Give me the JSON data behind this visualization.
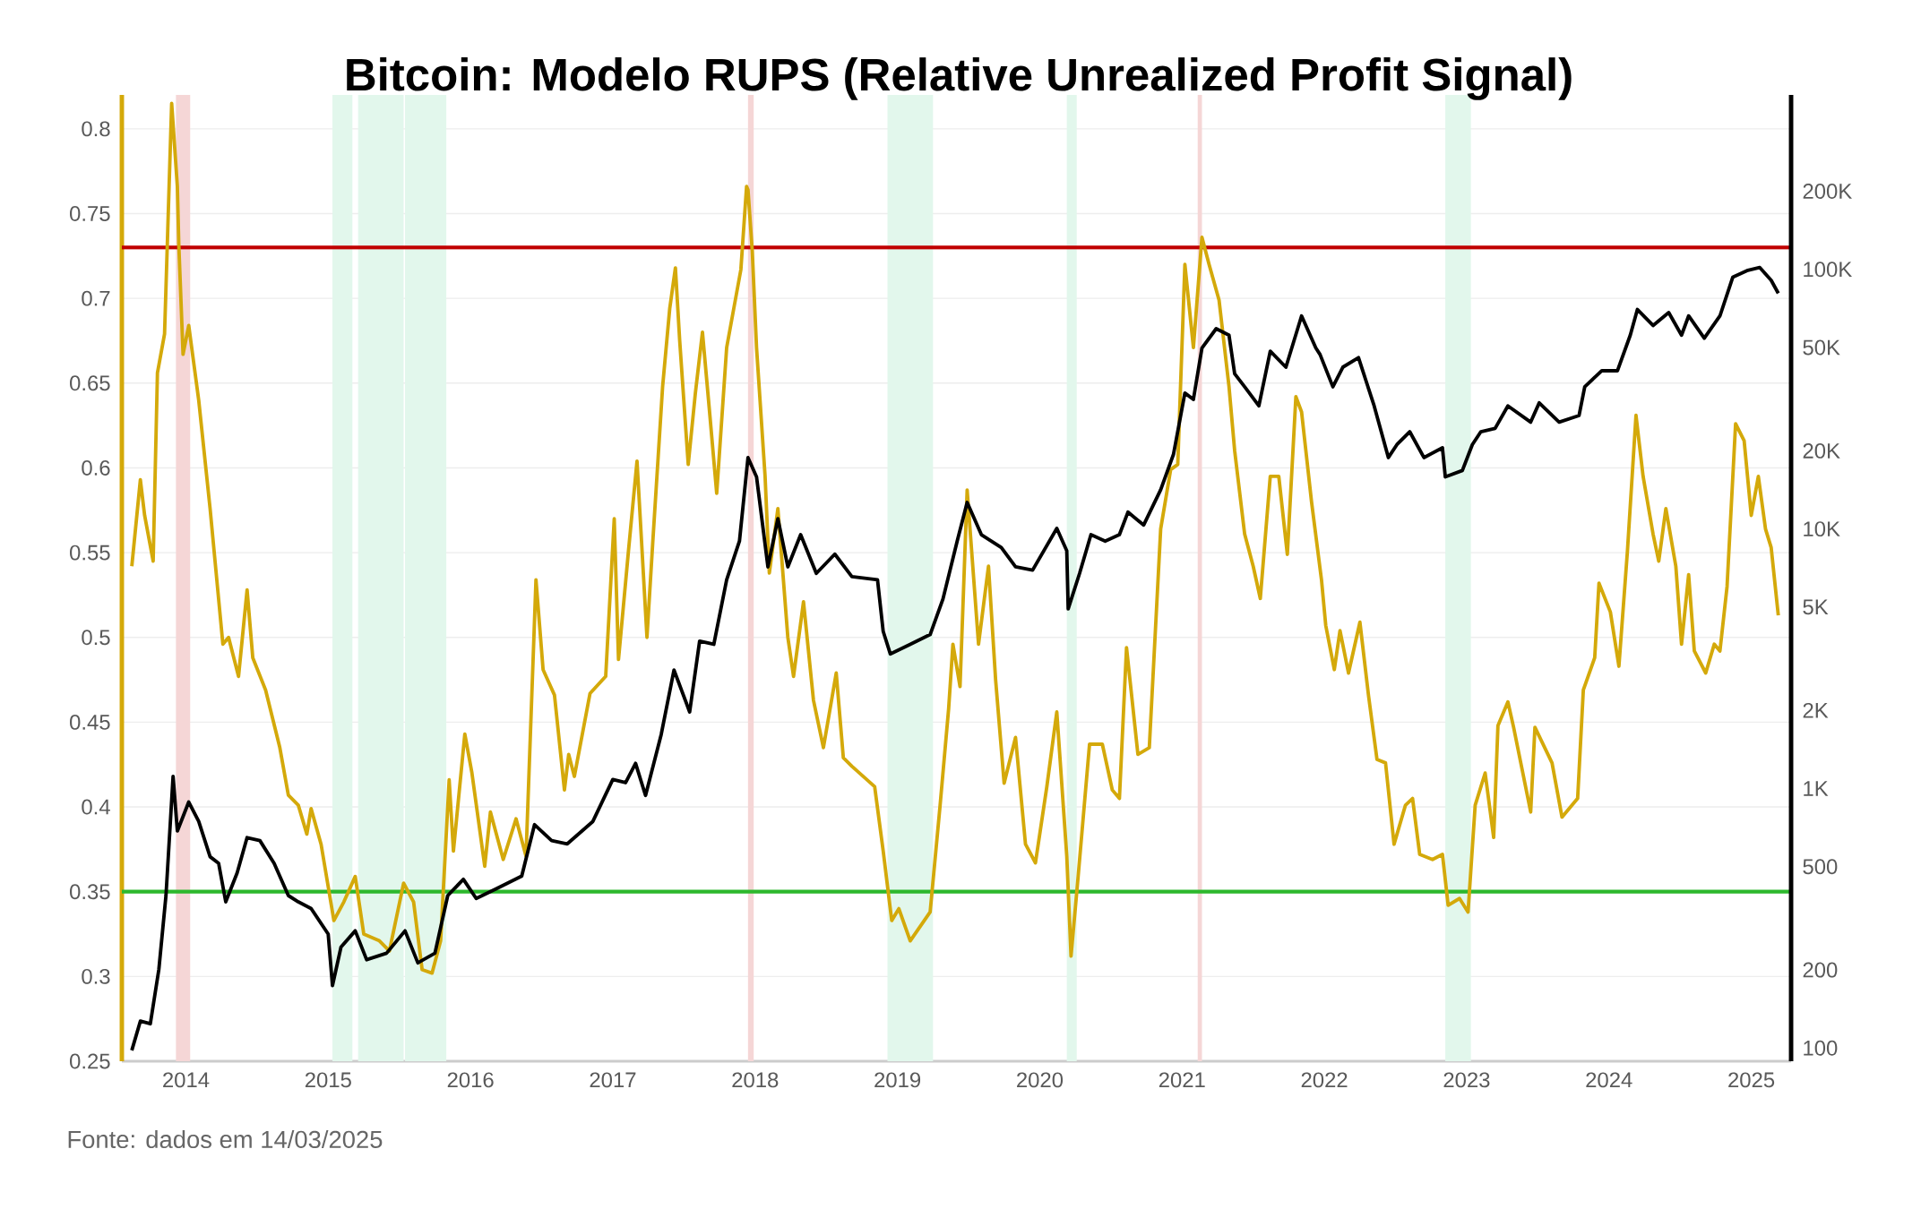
{
  "chart_data": {
    "type": "line",
    "title": "Bitcoin: Modelo RUPS (Relative Unrealized Profit Signal)",
    "annotations": [
      "Fonte: dados em 14/03/2025"
    ],
    "xlim": [
      2013.55,
      2025.28
    ],
    "xticks": [
      2014,
      2015,
      2016,
      2017,
      2018,
      2019,
      2020,
      2021,
      2022,
      2023,
      2024,
      2025
    ],
    "ylim": [
      0.25,
      0.82
    ],
    "yticks": [
      0.25,
      0.3,
      0.35,
      0.4,
      0.45,
      0.5,
      0.55,
      0.6,
      0.65,
      0.7,
      0.75,
      0.8
    ],
    "y2lim": [
      89,
      470000
    ],
    "y2ticks": [
      100,
      200,
      500,
      {
        "value": 1000,
        "label": "1K"
      },
      {
        "value": 2000,
        "label": "2K"
      },
      {
        "value": 5000,
        "label": "5K"
      },
      {
        "value": 10000,
        "label": "10K"
      },
      {
        "value": 20000,
        "label": "20K"
      },
      {
        "value": 50000,
        "label": "50K"
      },
      {
        "value": 100000,
        "label": "100K"
      },
      {
        "value": 200000,
        "label": "200K"
      }
    ],
    "log": "y2",
    "grid": "y",
    "ref_lines": [
      {
        "axis": "y",
        "value": 0.73,
        "color": "#c00000"
      },
      {
        "axis": "y",
        "value": 0.35,
        "color": "#2db82d"
      }
    ],
    "bands": [
      {
        "axis": "x",
        "from": 2013.93,
        "to": 2014.03,
        "color": "#f5d6d6"
      },
      {
        "axis": "x",
        "from": 2017.95,
        "to": 2017.99,
        "color": "#f5d6d6"
      },
      {
        "axis": "x",
        "from": 2021.11,
        "to": 2021.14,
        "color": "#f5d6d6"
      },
      {
        "axis": "x",
        "from": 2015.03,
        "to": 2015.17,
        "color": "#e2f7ec"
      },
      {
        "axis": "x",
        "from": 2015.21,
        "to": 2015.53,
        "color": "#e2f7ec"
      },
      {
        "axis": "x",
        "from": 2015.54,
        "to": 2015.83,
        "color": "#e2f7ec"
      },
      {
        "axis": "x",
        "from": 2018.93,
        "to": 2019.25,
        "color": "#e2f7ec"
      },
      {
        "axis": "x",
        "from": 2020.19,
        "to": 2020.26,
        "color": "#e2f7ec"
      },
      {
        "axis": "x",
        "from": 2022.85,
        "to": 2023.03,
        "color": "#e2f7ec"
      }
    ],
    "series": [
      {
        "color": "#d4a90a",
        "x": [
          2013.62,
          2013.68,
          2013.71,
          2013.77,
          2013.8,
          2013.85,
          2013.9,
          2013.94,
          2013.95,
          2013.98,
          2014.02,
          2014.09,
          2014.17,
          2014.26,
          2014.3,
          2014.37,
          2014.43,
          2014.47,
          2014.56,
          2014.66,
          2014.72,
          2014.79,
          2014.85,
          2014.88,
          2014.95,
          2015.04,
          2015.11,
          2015.19,
          2015.25,
          2015.36,
          2015.43,
          2015.53,
          2015.6,
          2015.66,
          2015.73,
          2015.79,
          2015.85,
          2015.88,
          2015.96,
          2016.01,
          2016.1,
          2016.14,
          2016.23,
          2016.32,
          2016.39,
          2016.46,
          2016.51,
          2016.59,
          2016.66,
          2016.69,
          2016.73,
          2016.84,
          2016.95,
          2017.01,
          2017.04,
          2017.11,
          2017.17,
          2017.24,
          2017.28,
          2017.35,
          2017.4,
          2017.44,
          2017.47,
          2017.53,
          2017.58,
          2017.63,
          2017.68,
          2017.73,
          2017.8,
          2017.85,
          2017.9,
          2017.94,
          2017.95,
          2017.98,
          2018.01,
          2018.07,
          2018.1,
          2018.16,
          2018.23,
          2018.27,
          2018.34,
          2018.41,
          2018.48,
          2018.57,
          2018.62,
          2018.68,
          2018.84,
          2018.9,
          2018.96,
          2019.01,
          2019.09,
          2019.23,
          2019.3,
          2019.36,
          2019.39,
          2019.44,
          2019.49,
          2019.57,
          2019.64,
          2019.69,
          2019.75,
          2019.83,
          2019.9,
          2019.97,
          2020.05,
          2020.12,
          2020.19,
          2020.22,
          2020.27,
          2020.35,
          2020.44,
          2020.51,
          2020.56,
          2020.61,
          2020.69,
          2020.77,
          2020.85,
          2020.92,
          2020.97,
          2021.02,
          2021.08,
          2021.14,
          2021.19,
          2021.26,
          2021.33,
          2021.37,
          2021.44,
          2021.5,
          2021.55,
          2021.62,
          2021.68,
          2021.74,
          2021.8,
          2021.84,
          2021.91,
          2021.98,
          2022.01,
          2022.07,
          2022.11,
          2022.17,
          2022.25,
          2022.31,
          2022.37,
          2022.43,
          2022.49,
          2022.57,
          2022.62,
          2022.67,
          2022.76,
          2022.83,
          2022.87,
          2022.95,
          2023.01,
          2023.06,
          2023.13,
          2023.19,
          2023.22,
          2023.29,
          2023.33,
          2023.45,
          2023.48,
          2023.6,
          2023.67,
          2023.78,
          2023.82,
          2023.9,
          2023.93,
          2024.01,
          2024.07,
          2024.13,
          2024.19,
          2024.24,
          2024.31,
          2024.35,
          2024.4,
          2024.47,
          2024.51,
          2024.56,
          2024.6,
          2024.68,
          2024.74,
          2024.78,
          2024.83,
          2024.89,
          2024.95,
          2025.0,
          2025.05,
          2025.1,
          2025.14,
          2025.19
        ],
        "values": [
          0.542,
          0.593,
          0.572,
          0.545,
          0.656,
          0.679,
          0.815,
          0.766,
          0.732,
          0.667,
          0.684,
          0.64,
          0.576,
          0.496,
          0.5,
          0.477,
          0.528,
          0.488,
          0.469,
          0.435,
          0.407,
          0.401,
          0.384,
          0.399,
          0.378,
          0.333,
          0.344,
          0.359,
          0.325,
          0.321,
          0.315,
          0.355,
          0.344,
          0.304,
          0.302,
          0.321,
          0.416,
          0.374,
          0.443,
          0.42,
          0.365,
          0.397,
          0.369,
          0.393,
          0.371,
          0.534,
          0.481,
          0.466,
          0.41,
          0.431,
          0.418,
          0.467,
          0.477,
          0.57,
          0.487,
          0.551,
          0.604,
          0.5,
          0.555,
          0.648,
          0.694,
          0.718,
          0.675,
          0.602,
          0.644,
          0.68,
          0.633,
          0.585,
          0.671,
          0.694,
          0.717,
          0.766,
          0.764,
          0.728,
          0.671,
          0.595,
          0.538,
          0.576,
          0.5,
          0.477,
          0.521,
          0.463,
          0.435,
          0.479,
          0.429,
          0.424,
          0.412,
          0.374,
          0.333,
          0.34,
          0.321,
          0.338,
          0.401,
          0.458,
          0.496,
          0.471,
          0.587,
          0.496,
          0.542,
          0.475,
          0.414,
          0.441,
          0.378,
          0.367,
          0.412,
          0.456,
          0.371,
          0.312,
          0.359,
          0.437,
          0.437,
          0.41,
          0.405,
          0.494,
          0.431,
          0.435,
          0.564,
          0.599,
          0.602,
          0.72,
          0.671,
          0.736,
          0.72,
          0.699,
          0.648,
          0.61,
          0.561,
          0.542,
          0.523,
          0.595,
          0.595,
          0.549,
          0.642,
          0.633,
          0.58,
          0.534,
          0.507,
          0.481,
          0.504,
          0.479,
          0.509,
          0.466,
          0.428,
          0.426,
          0.378,
          0.401,
          0.405,
          0.372,
          0.369,
          0.372,
          0.342,
          0.346,
          0.338,
          0.401,
          0.42,
          0.382,
          0.448,
          0.462,
          0.447,
          0.397,
          0.447,
          0.426,
          0.394,
          0.405,
          0.469,
          0.488,
          0.532,
          0.515,
          0.483,
          0.551,
          0.631,
          0.595,
          0.561,
          0.545,
          0.576,
          0.542,
          0.496,
          0.537,
          0.492,
          0.479,
          0.496,
          0.492,
          0.53,
          0.626,
          0.616,
          0.572,
          0.595,
          0.564,
          0.553,
          0.513
        ]
      },
      {
        "color": "#000000",
        "axis": "y2",
        "x": [
          2013.62,
          2013.68,
          2013.75,
          2013.81,
          2013.86,
          2013.91,
          2013.94,
          2014.02,
          2014.09,
          2014.17,
          2014.23,
          2014.28,
          2014.36,
          2014.43,
          2014.52,
          2014.62,
          2014.72,
          2014.79,
          2014.88,
          2015.0,
          2015.03,
          2015.09,
          2015.19,
          2015.27,
          2015.41,
          2015.54,
          2015.63,
          2015.75,
          2015.84,
          2015.95,
          2016.04,
          2016.18,
          2016.36,
          2016.45,
          2016.57,
          2016.68,
          2016.86,
          2017.0,
          2017.09,
          2017.16,
          2017.23,
          2017.34,
          2017.43,
          2017.54,
          2017.61,
          2017.71,
          2017.8,
          2017.89,
          2017.95,
          2018.01,
          2018.09,
          2018.16,
          2018.23,
          2018.32,
          2018.43,
          2018.56,
          2018.68,
          2018.86,
          2018.9,
          2018.95,
          2019.09,
          2019.23,
          2019.32,
          2019.42,
          2019.49,
          2019.59,
          2019.73,
          2019.83,
          2019.95,
          2020.12,
          2020.19,
          2020.2,
          2020.28,
          2020.36,
          2020.46,
          2020.56,
          2020.62,
          2020.73,
          2020.85,
          2020.94,
          2021.02,
          2021.08,
          2021.14,
          2021.24,
          2021.33,
          2021.37,
          2021.44,
          2021.54,
          2021.62,
          2021.73,
          2021.84,
          2021.94,
          2021.97,
          2022.06,
          2022.13,
          2022.24,
          2022.35,
          2022.45,
          2022.51,
          2022.6,
          2022.7,
          2022.83,
          2022.85,
          2022.97,
          2023.04,
          2023.1,
          2023.2,
          2023.29,
          2023.45,
          2023.51,
          2023.65,
          2023.79,
          2023.83,
          2023.95,
          2024.06,
          2024.15,
          2024.2,
          2024.31,
          2024.42,
          2024.51,
          2024.56,
          2024.67,
          2024.78,
          2024.87,
          2024.97,
          2025.06,
          2025.14,
          2025.19
        ],
        "values": [
          98,
          127,
          124,
          201,
          387,
          1114,
          686,
          887,
          747,
          546,
          515,
          366,
          473,
          647,
          630,
          515,
          387,
          366,
          345,
          275,
          174,
          245,
          283,
          219,
          232,
          283,
          213,
          232,
          387,
          447,
          377,
          411,
          460,
          726,
          630,
          612,
          747,
          1083,
          1053,
          1250,
          940,
          1615,
          2862,
          1972,
          3698,
          3594,
          6370,
          8977,
          18840,
          15870,
          7145,
          10960,
          7145,
          9506,
          6745,
          8000,
          6550,
          6370,
          4030,
          3300,
          3594,
          3920,
          5370,
          8977,
          12650,
          9506,
          8480,
          7145,
          6940,
          10050,
          8240,
          4920,
          6745,
          9506,
          8977,
          9506,
          11610,
          10350,
          14160,
          19400,
          33400,
          31550,
          49800,
          59100,
          55800,
          39600,
          35300,
          29800,
          48400,
          42000,
          66200,
          49800,
          47000,
          35300,
          42000,
          45700,
          29800,
          18840,
          21130,
          23700,
          18840,
          20550,
          15870,
          16800,
          21130,
          23700,
          24400,
          29800,
          25800,
          30600,
          25800,
          27350,
          35300,
          40700,
          40700,
          55800,
          70100,
          60800,
          68200,
          55800,
          66200,
          54300,
          66200,
          93300,
          98900,
          101700,
          90800,
          80900
        ]
      }
    ]
  }
}
